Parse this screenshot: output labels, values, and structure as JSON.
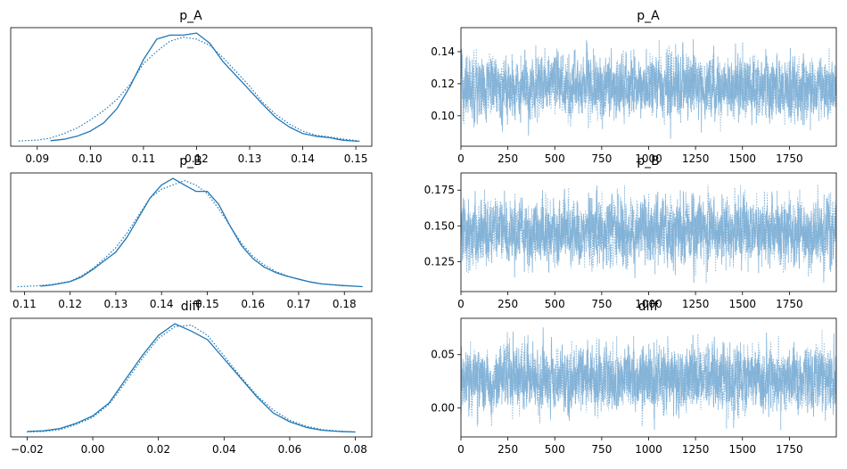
{
  "chart_data": [
    {
      "type": "line",
      "title": "p_A",
      "xlabel": "",
      "ylabel": "",
      "xlim": [
        0.085,
        0.153
      ],
      "x_ticks": [
        0.09,
        0.1,
        0.11,
        0.12,
        0.13,
        0.14,
        0.15
      ],
      "x_tick_labels": [
        "0.09",
        "0.10",
        "0.11",
        "0.12",
        "0.13",
        "0.14",
        "0.15"
      ],
      "y_ticks": [],
      "y_tick_labels": [],
      "grid": false,
      "series": [
        {
          "style": "solid",
          "color": "#1f77b4",
          "x": [
            0.0925,
            0.095,
            0.0975,
            0.1,
            0.1025,
            0.105,
            0.1075,
            0.11,
            0.1125,
            0.115,
            0.1175,
            0.12,
            0.1225,
            0.125,
            0.1275,
            0.13,
            0.1325,
            0.135,
            0.1375,
            0.14,
            0.1425,
            0.145,
            0.1475,
            0.1505
          ],
          "y": [
            0.3,
            1,
            2.5,
            5,
            9,
            16,
            27,
            40,
            50,
            52,
            52,
            53,
            48,
            39,
            32,
            25,
            18,
            11.5,
            7,
            3.8,
            2.5,
            1.8,
            0.6,
            0
          ]
        },
        {
          "style": "dotted",
          "color": "#1f77b4",
          "x": [
            0.0865,
            0.09,
            0.0925,
            0.095,
            0.0975,
            0.1,
            0.1025,
            0.105,
            0.1075,
            0.11,
            0.1125,
            0.115,
            0.1175,
            0.12,
            0.1225,
            0.125,
            0.1275,
            0.13,
            0.1325,
            0.135,
            0.1375,
            0.14,
            0.1425,
            0.145,
            0.1475,
            0.151
          ],
          "y": [
            0.2,
            0.6,
            1.6,
            3.8,
            6.5,
            10.5,
            15,
            20.5,
            28,
            38,
            44,
            49,
            51,
            50,
            47,
            41,
            34,
            27,
            19,
            13,
            8.5,
            5,
            3,
            2.2,
            1.2,
            0
          ]
        }
      ]
    },
    {
      "type": "line",
      "title": "p_A",
      "xlabel": "",
      "ylabel": "",
      "xlim": [
        0,
        2000
      ],
      "ylim": [
        0.081,
        0.155
      ],
      "x_ticks": [
        0,
        250,
        500,
        750,
        1000,
        1250,
        1500,
        1750
      ],
      "x_tick_labels": [
        "0",
        "250",
        "500",
        "750",
        "1000",
        "1250",
        "1500",
        "1750"
      ],
      "y_ticks": [
        0.1,
        0.12,
        0.14
      ],
      "y_tick_labels": [
        "0.10",
        "0.12",
        "0.14"
      ],
      "grid": false,
      "trace": {
        "n": 2000,
        "center": 0.118,
        "spread": 0.009,
        "min": 0.085,
        "max": 0.152,
        "color": "#7fb0d6"
      }
    },
    {
      "type": "line",
      "title": "p_B",
      "xlabel": "",
      "ylabel": "",
      "xlim": [
        0.107,
        0.186
      ],
      "x_ticks": [
        0.11,
        0.12,
        0.13,
        0.14,
        0.15,
        0.16,
        0.17,
        0.18
      ],
      "x_tick_labels": [
        "0.11",
        "0.12",
        "0.13",
        "0.14",
        "0.15",
        "0.16",
        "0.17",
        "0.18"
      ],
      "y_ticks": [],
      "y_tick_labels": [],
      "grid": false,
      "series": [
        {
          "style": "solid",
          "color": "#1f77b4",
          "x": [
            0.1135,
            0.116,
            0.12,
            0.1225,
            0.125,
            0.1275,
            0.13,
            0.1325,
            0.135,
            0.1375,
            0.14,
            0.1425,
            0.145,
            0.1475,
            0.15,
            0.1525,
            0.155,
            0.1575,
            0.16,
            0.1625,
            0.165,
            0.1675,
            0.17,
            0.1725,
            0.175,
            0.18,
            0.184
          ],
          "y": [
            0.2,
            0.8,
            2.3,
            4.5,
            8,
            12,
            16,
            23,
            32,
            41,
            47,
            50,
            47,
            44,
            44,
            38,
            28,
            19,
            13,
            9,
            6.5,
            4.8,
            3.5,
            2.2,
            1.3,
            0.5,
            0
          ]
        },
        {
          "style": "dotted",
          "color": "#1f77b4",
          "x": [
            0.1085,
            0.112,
            0.116,
            0.12,
            0.1225,
            0.125,
            0.1275,
            0.13,
            0.1325,
            0.135,
            0.1375,
            0.14,
            0.1425,
            0.145,
            0.1475,
            0.15,
            0.1525,
            0.155,
            0.1575,
            0.16,
            0.1625,
            0.165,
            0.1675,
            0.17,
            0.1725,
            0.175,
            0.18
          ],
          "y": [
            0,
            0.3,
            1,
            2.5,
            5,
            8.5,
            13,
            18,
            25,
            33,
            41,
            45,
            47,
            49,
            47,
            43,
            36,
            28,
            20,
            14,
            10,
            7,
            5,
            3.3,
            2.2,
            1.3,
            0.3
          ]
        }
      ]
    },
    {
      "type": "line",
      "title": "p_B",
      "xlabel": "",
      "ylabel": "",
      "xlim": [
        0,
        2000
      ],
      "ylim": [
        0.104,
        0.187
      ],
      "x_ticks": [
        0,
        250,
        500,
        750,
        1000,
        1250,
        1500,
        1750
      ],
      "x_tick_labels": [
        "0",
        "250",
        "500",
        "750",
        "1000",
        "1250",
        "1500",
        "1750"
      ],
      "y_ticks": [
        0.125,
        0.15,
        0.175
      ],
      "y_tick_labels": [
        "0.125",
        "0.150",
        "0.175"
      ],
      "grid": false,
      "trace": {
        "n": 2000,
        "center": 0.146,
        "spread": 0.011,
        "min": 0.109,
        "max": 0.184,
        "color": "#7fb0d6"
      }
    },
    {
      "type": "line",
      "title": "diff",
      "xlabel": "",
      "ylabel": "",
      "xlim": [
        -0.025,
        0.085
      ],
      "x_ticks": [
        -0.02,
        0.0,
        0.02,
        0.04,
        0.06,
        0.08
      ],
      "x_tick_labels": [
        "−0.02",
        "0.00",
        "0.02",
        "0.04",
        "0.06",
        "0.08"
      ],
      "y_ticks": [],
      "y_tick_labels": [],
      "grid": false,
      "series": [
        {
          "style": "solid",
          "color": "#1f77b4",
          "x": [
            -0.02,
            -0.015,
            -0.01,
            -0.005,
            0.0,
            0.005,
            0.01,
            0.015,
            0.02,
            0.025,
            0.03,
            0.035,
            0.04,
            0.045,
            0.05,
            0.055,
            0.06,
            0.065,
            0.07,
            0.075,
            0.08
          ],
          "y": [
            0.2,
            0.4,
            1.2,
            3,
            5.5,
            10,
            18,
            26,
            33,
            37,
            34.5,
            31.5,
            25,
            18.5,
            12,
            6.5,
            3.5,
            1.6,
            0.6,
            0.2,
            0
          ]
        },
        {
          "style": "dotted",
          "color": "#1f77b4",
          "x": [
            -0.02,
            -0.015,
            -0.01,
            -0.005,
            0.0,
            0.005,
            0.01,
            0.015,
            0.02,
            0.025,
            0.03,
            0.035,
            0.04,
            0.045,
            0.05,
            0.055,
            0.06,
            0.065,
            0.07,
            0.075,
            0.08
          ],
          "y": [
            0,
            0.2,
            0.8,
            2.6,
            5,
            9.5,
            17,
            25,
            32,
            36,
            36.5,
            33,
            26,
            19,
            12.5,
            7.5,
            4,
            2,
            0.8,
            0.3,
            0
          ]
        }
      ]
    },
    {
      "type": "line",
      "title": "diff",
      "xlabel": "",
      "ylabel": "",
      "xlim": [
        0,
        2000
      ],
      "ylim": [
        -0.027,
        0.084
      ],
      "x_ticks": [
        0,
        250,
        500,
        750,
        1000,
        1250,
        1500,
        1750
      ],
      "x_tick_labels": [
        "0",
        "250",
        "500",
        "750",
        "1000",
        "1250",
        "1500",
        "1750"
      ],
      "y_ticks": [
        0.0,
        0.05
      ],
      "y_tick_labels": [
        "0.00",
        "0.05"
      ],
      "grid": false,
      "trace": {
        "n": 2000,
        "center": 0.027,
        "spread": 0.014,
        "min": -0.021,
        "max": 0.08,
        "color": "#7fb0d6"
      }
    }
  ]
}
